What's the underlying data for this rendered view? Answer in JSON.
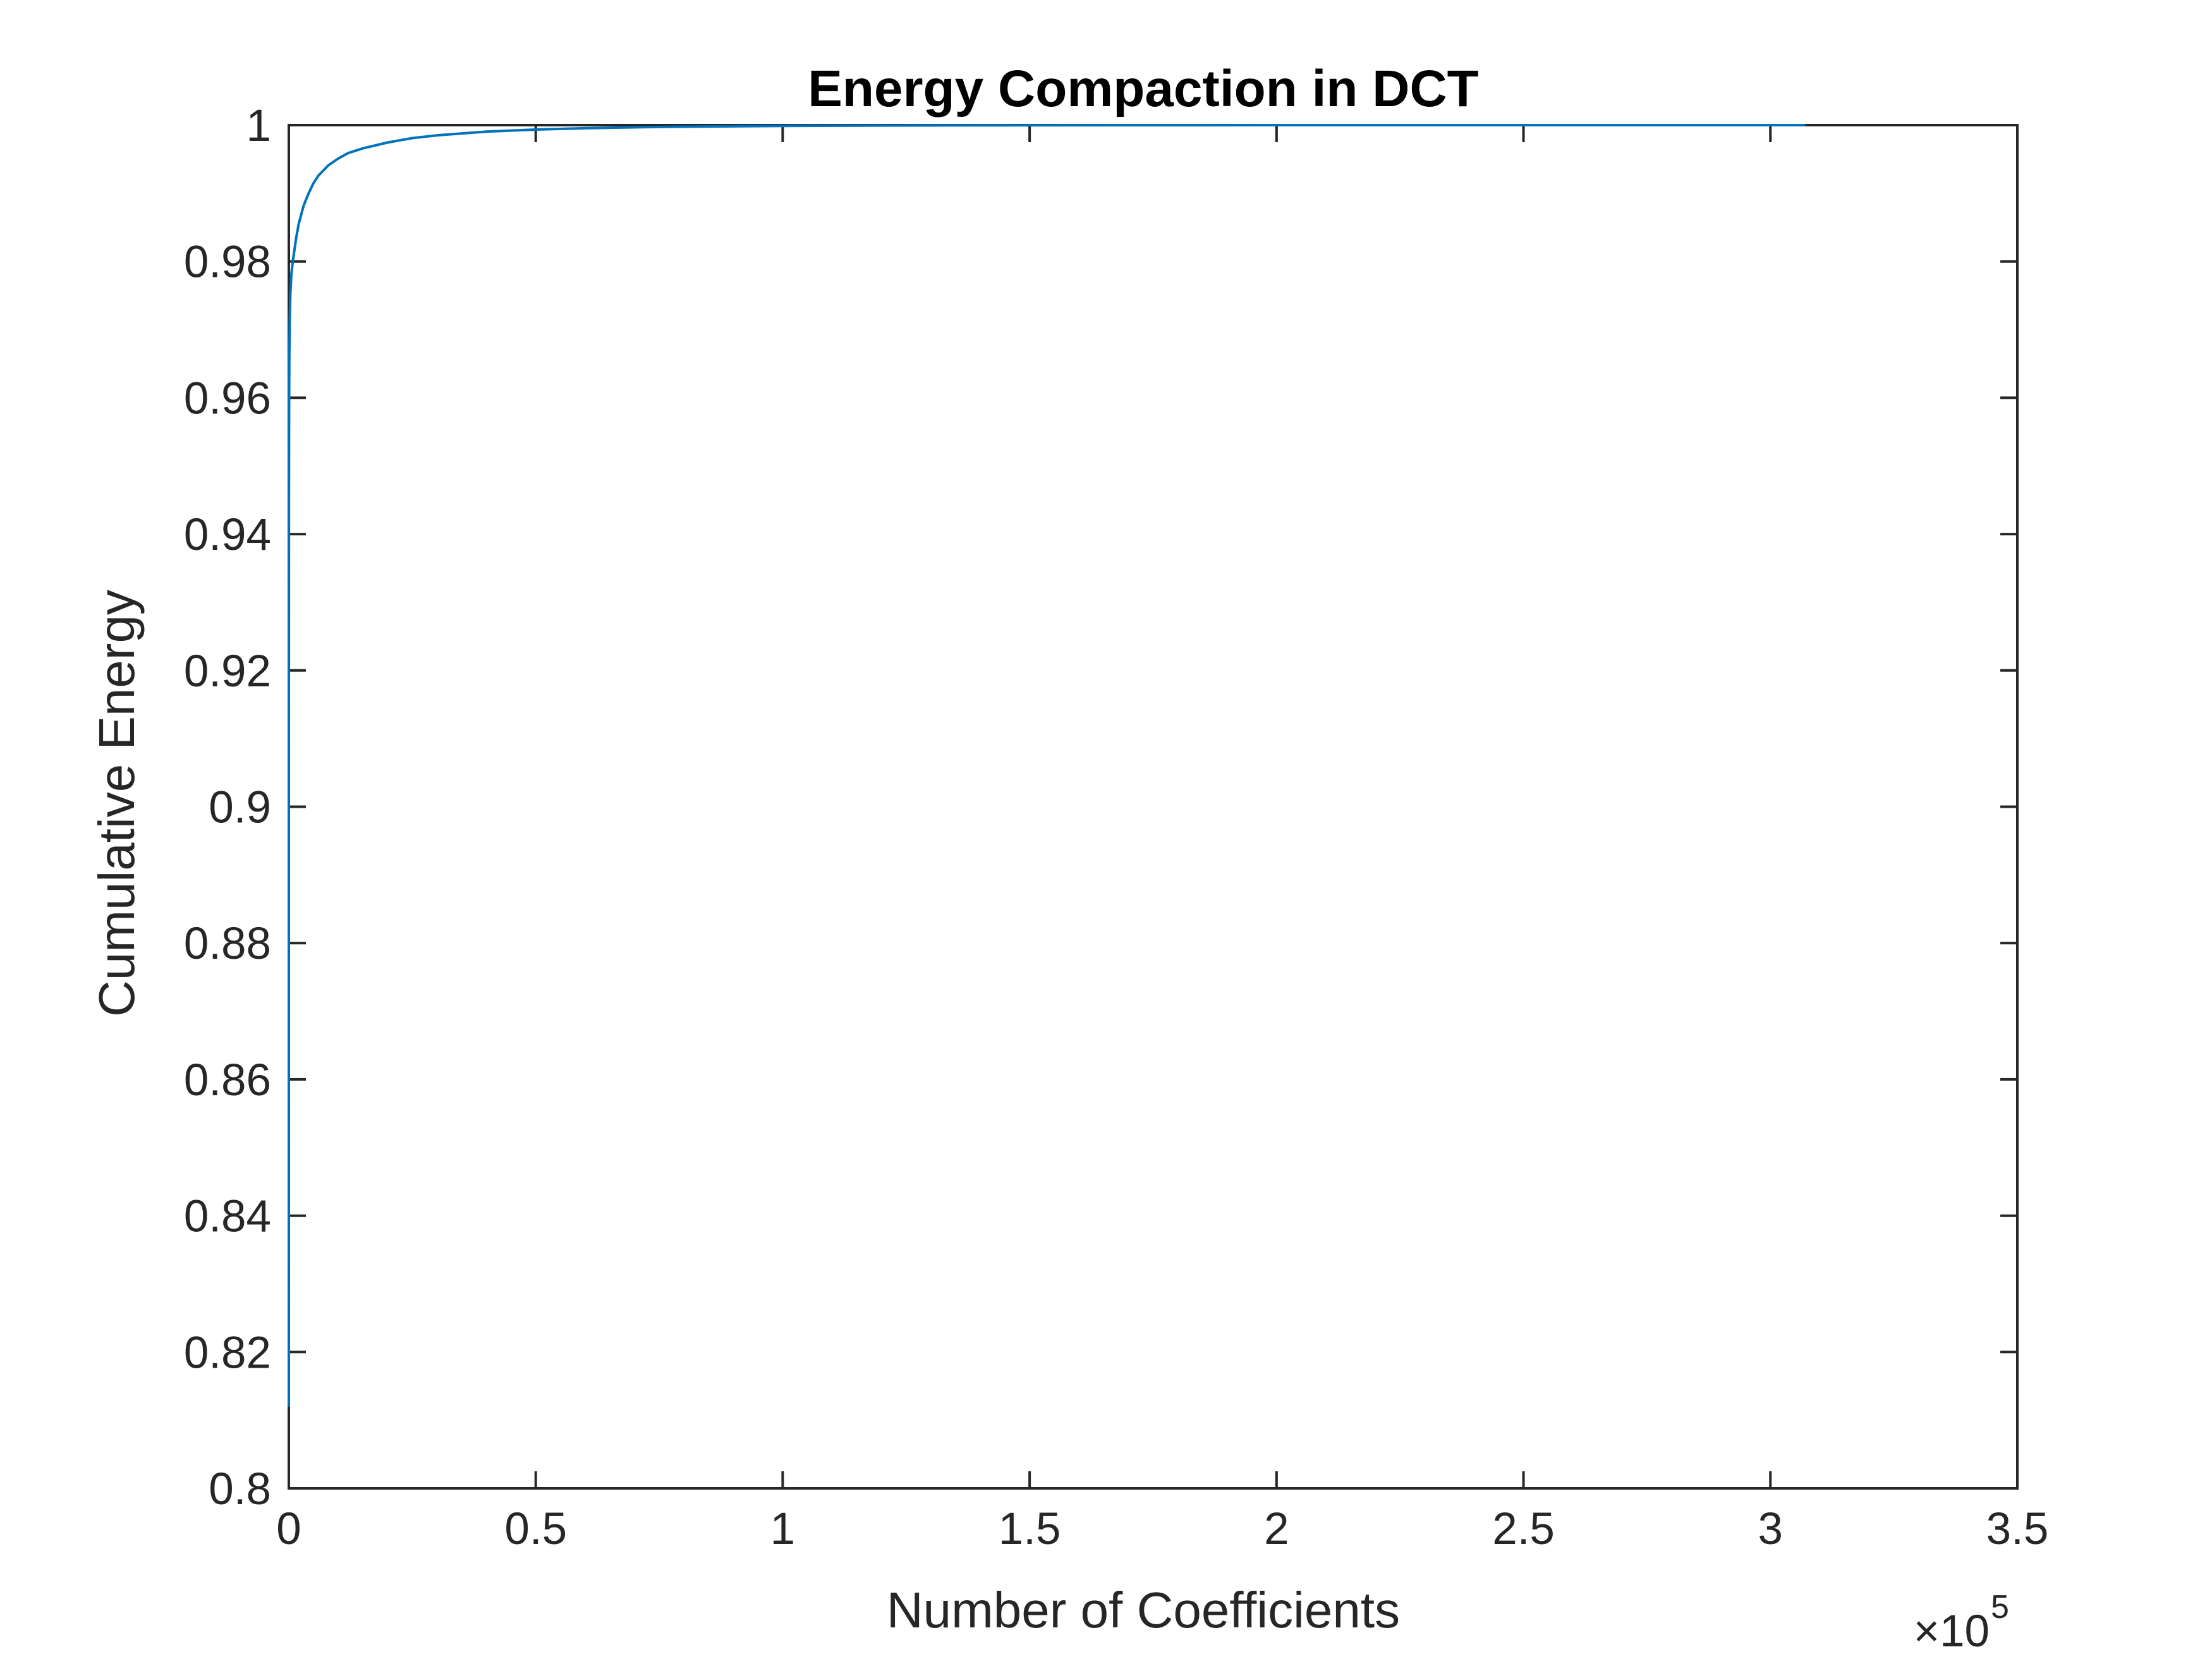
{
  "chart_data": {
    "type": "line",
    "title": "Energy Compaction in DCT",
    "xlabel": "Number of Coefficients",
    "ylabel": "Cumulative Energy",
    "x_multiplier": "×10",
    "x_multiplier_exp": "5",
    "xlim": [
      0,
      3.5
    ],
    "ylim": [
      0.8,
      1
    ],
    "xticks": [
      "0",
      "0.5",
      "1",
      "1.5",
      "2",
      "2.5",
      "3",
      "3.5"
    ],
    "yticks": [
      "0.8",
      "0.82",
      "0.84",
      "0.86",
      "0.88",
      "0.9",
      "0.92",
      "0.94",
      "0.96",
      "0.98",
      "1"
    ],
    "grid": false,
    "series": [
      {
        "color": "#0072BD",
        "x": [
          0,
          2e-05,
          0.0001,
          0.0002,
          0.0005,
          0.001,
          0.002,
          0.003,
          0.005,
          0.008,
          0.01,
          0.015,
          0.02,
          0.03,
          0.04,
          0.05,
          0.06,
          0.08,
          0.1,
          0.12,
          0.15,
          0.2,
          0.25,
          0.3,
          0.4,
          0.5,
          0.6,
          0.7,
          0.8,
          1.0,
          1.2,
          1.5,
          2.0,
          2.5,
          3.07
        ],
        "y": [
          0.812,
          0.88,
          0.925,
          0.945,
          0.958,
          0.966,
          0.972,
          0.975,
          0.978,
          0.98,
          0.981,
          0.9835,
          0.9855,
          0.9882,
          0.99,
          0.9915,
          0.9926,
          0.9941,
          0.9951,
          0.9959,
          0.9966,
          0.99745,
          0.9981,
          0.9985,
          0.99905,
          0.99935,
          0.99955,
          0.99968,
          0.99977,
          0.99988,
          0.99994,
          0.99998,
          1.0,
          1.0,
          1.0
        ]
      }
    ]
  }
}
